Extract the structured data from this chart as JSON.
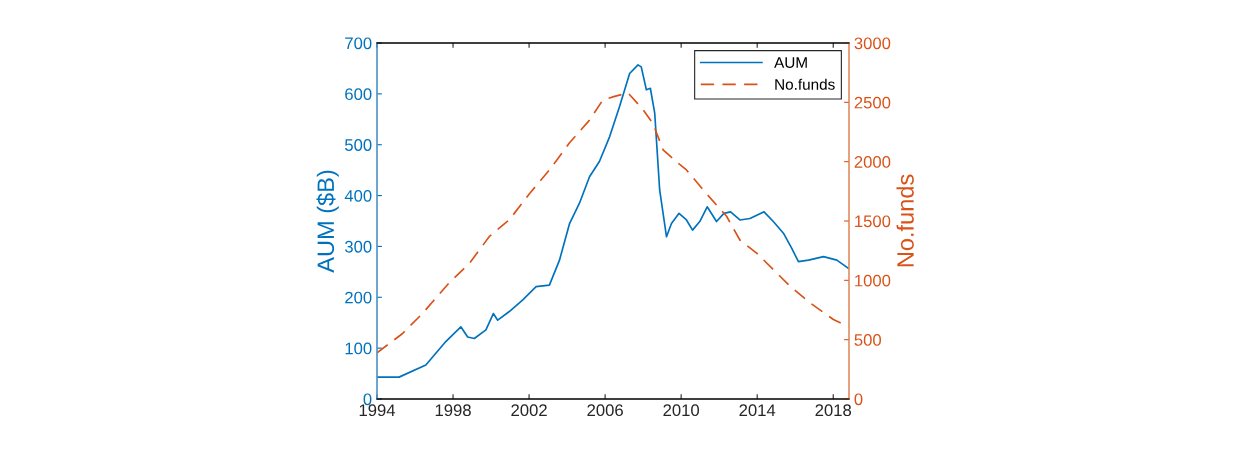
{
  "chart_data": {
    "type": "line",
    "ylabel": "AUM ($B)",
    "y2label": "No.funds",
    "xlim": [
      1994,
      2018.83
    ],
    "xticks": [
      1994,
      1998,
      2002,
      2006,
      2010,
      2014,
      2018
    ],
    "ylim": [
      0,
      700
    ],
    "yticks": [
      0,
      100,
      200,
      300,
      400,
      500,
      600,
      700
    ],
    "y2lim": [
      0,
      3000
    ],
    "y2ticks": [
      0,
      500,
      1000,
      1500,
      2000,
      2500,
      3000
    ],
    "grid": false,
    "legend": "top right",
    "series": [
      {
        "name": "AUM",
        "color": "#0072bd",
        "line_style": "solid",
        "axis": "y",
        "x": [
          1994.0,
          1995.16,
          1996.57,
          1997.62,
          1998.41,
          1998.77,
          1999.12,
          1999.73,
          2000.12,
          2000.35,
          2000.96,
          2001.67,
          2002.37,
          2003.07,
          2003.6,
          2004.13,
          2004.65,
          2005.18,
          2005.7,
          2006.24,
          2006.76,
          2007.29,
          2007.73,
          2007.9,
          2008.17,
          2008.38,
          2008.61,
          2008.87,
          2009.23,
          2009.49,
          2009.89,
          2010.28,
          2010.6,
          2010.98,
          2011.37,
          2011.86,
          2012.25,
          2012.6,
          2013.09,
          2013.62,
          2014.36,
          2014.85,
          2015.38,
          2015.82,
          2016.17,
          2016.7,
          2017.49,
          2018.19,
          2018.8
        ],
        "values": [
          43,
          43,
          67,
          113,
          142,
          122,
          119,
          136,
          168,
          155,
          172,
          195,
          221,
          224,
          273,
          345,
          385,
          437,
          467,
          516,
          575,
          640,
          657,
          653,
          608,
          611,
          562,
          411,
          319,
          345,
          365,
          352,
          332,
          349,
          378,
          349,
          365,
          368,
          352,
          355,
          368,
          349,
          326,
          296,
          270,
          273,
          280,
          273,
          257
        ]
      },
      {
        "name": "No.funds",
        "color": "#d95319",
        "line_style": "dashed",
        "axis": "y2",
        "x": [
          1994.0,
          1995.33,
          1996.39,
          1997.8,
          1998.85,
          1999.91,
          2000.96,
          2002.02,
          2003.07,
          2004.13,
          2005.18,
          2005.88,
          2006.5,
          2007.2,
          2007.99,
          2008.52,
          2009.05,
          2009.75,
          2010.28,
          2011.33,
          2012.39,
          2013.09,
          2013.97,
          2014.85,
          2015.73,
          2016.78,
          2018.01,
          2018.8
        ],
        "values": [
          390,
          550,
          720,
          980,
          1140,
          1370,
          1510,
          1730,
          1930,
          2160,
          2350,
          2520,
          2550,
          2580,
          2440,
          2320,
          2100,
          2000,
          1930,
          1730,
          1540,
          1340,
          1230,
          1090,
          950,
          810,
          670,
          610
        ]
      }
    ]
  }
}
